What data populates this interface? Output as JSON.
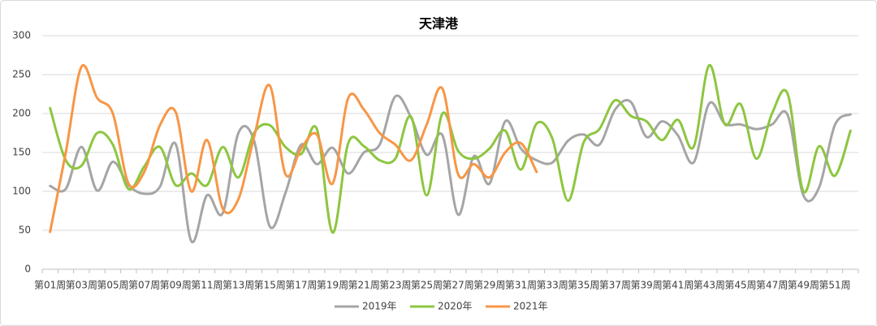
{
  "chart_data": {
    "type": "line",
    "title": "天津港",
    "categories": [
      "第01周",
      null,
      "第03周",
      null,
      "第05周",
      null,
      "第07周",
      null,
      "第09周",
      null,
      "第11周",
      null,
      "第13周",
      null,
      "第15周",
      null,
      "第17周",
      null,
      "第19周",
      null,
      "第21周",
      null,
      "第23周",
      null,
      "第25周",
      null,
      "第27周",
      null,
      "第29周",
      null,
      "第31周",
      null,
      "第33周",
      null,
      "第35周",
      null,
      "第37周",
      null,
      "第39周",
      null,
      "第41周",
      null,
      "第43周",
      null,
      "第45周",
      null,
      "第47周",
      null,
      "第49周",
      null,
      "第51周",
      null
    ],
    "series": [
      {
        "name": "2019年",
        "color": "#a5a5a5",
        "values": [
          107,
          103,
          157,
          101,
          138,
          108,
          97,
          106,
          161,
          36,
          95,
          72,
          175,
          165,
          55,
          98,
          160,
          135,
          156,
          123,
          150,
          160,
          222,
          195,
          147,
          172,
          70,
          145,
          110,
          190,
          155,
          140,
          137,
          165,
          173,
          160,
          205,
          215,
          170,
          190,
          172,
          137,
          213,
          187,
          186,
          180,
          186,
          198,
          95,
          105,
          185,
          199
        ]
      },
      {
        "name": "2020年",
        "color": "#8dc63f",
        "values": [
          207,
          140,
          133,
          175,
          160,
          103,
          132,
          157,
          108,
          123,
          108,
          157,
          118,
          175,
          185,
          157,
          148,
          180,
          47,
          162,
          158,
          140,
          142,
          196,
          95,
          200,
          152,
          142,
          155,
          178,
          128,
          187,
          168,
          88,
          163,
          180,
          217,
          197,
          190,
          166,
          192,
          157,
          262,
          186,
          212,
          142,
          200,
          225,
          100,
          158,
          120,
          178
        ]
      },
      {
        "name": "2021年",
        "color": "#f79646",
        "values": [
          48,
          150,
          260,
          220,
          200,
          110,
          125,
          185,
          202,
          100,
          166,
          78,
          90,
          170,
          236,
          122,
          155,
          173,
          110,
          220,
          205,
          175,
          160,
          140,
          186,
          232,
          122,
          135,
          118,
          150,
          162,
          125,
          null,
          null,
          null,
          null,
          null,
          null,
          null,
          null,
          null,
          null,
          null,
          null,
          null,
          null,
          null,
          null,
          null,
          null,
          null,
          null
        ]
      }
    ],
    "ylim": [
      0,
      300
    ],
    "yticks": [
      0,
      50,
      100,
      150,
      200,
      250,
      300
    ],
    "grid": true,
    "legend": "bottom"
  }
}
